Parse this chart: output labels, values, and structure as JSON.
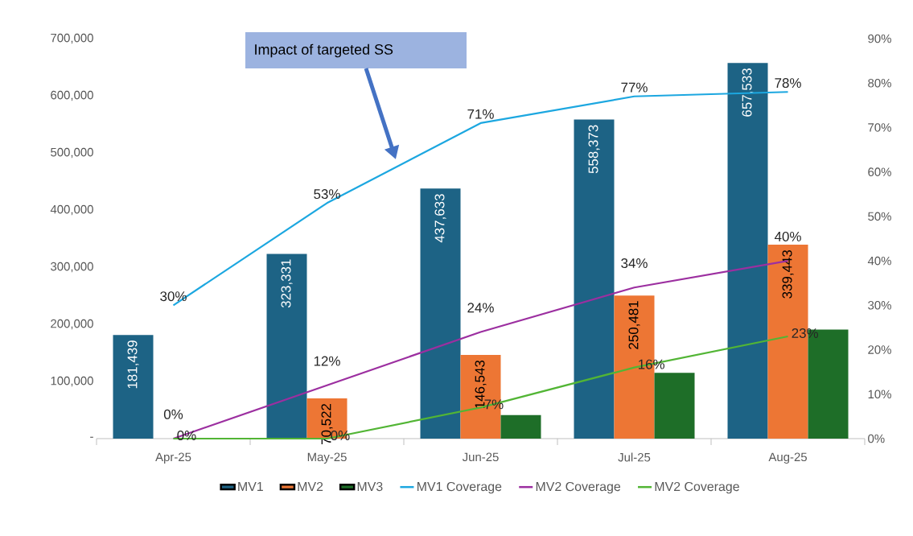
{
  "chart_data": {
    "type": "bar",
    "categories": [
      "Apr-25",
      "May-25",
      "Jun-25",
      "Jul-25",
      "Aug-25"
    ],
    "series": [
      {
        "name": "MV1",
        "color": "#1d6385",
        "values": [
          181439,
          323331,
          437633,
          558373,
          657533
        ],
        "value_labels": [
          "181,439",
          "323,331",
          "437,633",
          "558,373",
          "657,533"
        ]
      },
      {
        "name": "MV2",
        "color": "#ed7634",
        "values": [
          0,
          70522,
          146543,
          250481,
          339443
        ],
        "value_labels": [
          null,
          "70,522",
          "146,543",
          "250,481",
          "339,443"
        ]
      },
      {
        "name": "MV3",
        "color": "#1e6e28",
        "values": [
          0,
          0,
          41000,
          115000,
          191000
        ]
      },
      {
        "name": "MV1 Coverage",
        "type": "line",
        "axis": "y2",
        "color": "#1ca7e0",
        "values": [
          30,
          53,
          71,
          77,
          78
        ],
        "value_labels": [
          "30%",
          "53%",
          "71%",
          "77%",
          "78%"
        ]
      },
      {
        "name": "MV2 Coverage",
        "type": "line",
        "axis": "y2",
        "color": "#9c2fa0",
        "values": [
          0,
          12,
          24,
          34,
          40
        ],
        "value_labels": [
          "0%",
          "12%",
          "24%",
          "34%",
          "40%"
        ]
      },
      {
        "name": "MV2 Coverage",
        "type": "line",
        "axis": "y2",
        "color": "#52b535",
        "values": [
          0,
          0,
          7,
          16,
          23
        ],
        "value_labels": [
          "0%",
          "0%",
          "7%",
          "16%",
          "23%"
        ]
      }
    ],
    "ylim": [
      0,
      700000
    ],
    "yticks": [
      {
        "value": 0,
        "label": "-"
      },
      {
        "value": 100000,
        "label": "100,000"
      },
      {
        "value": 200000,
        "label": "200,000"
      },
      {
        "value": 300000,
        "label": "300,000"
      },
      {
        "value": 400000,
        "label": "400,000"
      },
      {
        "value": 500000,
        "label": "500,000"
      },
      {
        "value": 600000,
        "label": "600,000"
      },
      {
        "value": 700000,
        "label": "700,000"
      }
    ],
    "y2lim": [
      0,
      90
    ],
    "y2ticks": [
      {
        "value": 0,
        "label": "0%"
      },
      {
        "value": 10,
        "label": "10%"
      },
      {
        "value": 20,
        "label": "20%"
      },
      {
        "value": 30,
        "label": "30%"
      },
      {
        "value": 40,
        "label": "40%"
      },
      {
        "value": 50,
        "label": "50%"
      },
      {
        "value": 60,
        "label": "60%"
      },
      {
        "value": 70,
        "label": "70%"
      },
      {
        "value": 80,
        "label": "80%"
      },
      {
        "value": 90,
        "label": "90%"
      }
    ],
    "legend": "bottom",
    "annotations": [
      "Impact of targeted SS"
    ]
  }
}
